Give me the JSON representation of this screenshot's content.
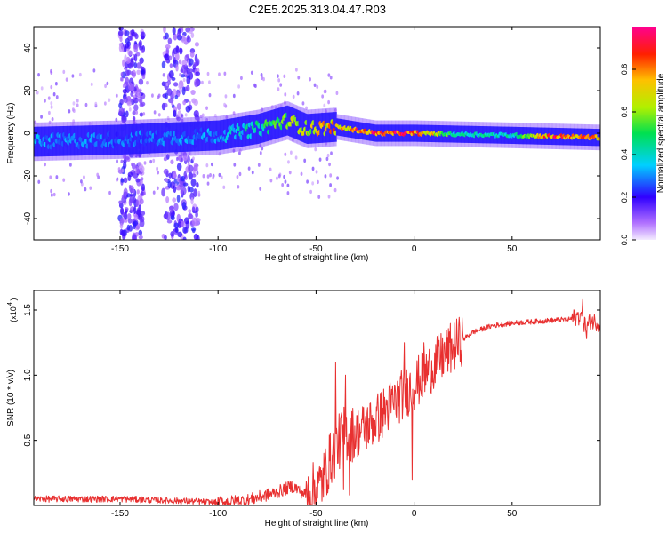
{
  "figure": {
    "title": "C2E5.2025.313.04.47.R03"
  },
  "colors": {
    "snr_line": "#e83030",
    "axis": "#000000"
  },
  "chart_data": [
    {
      "type": "heatmap",
      "title": "C2E5.2025.313.04.47.R03",
      "xlabel": "Height of straight line (km)",
      "ylabel": "Frequency (Hz)",
      "xlim": [
        -194,
        95
      ],
      "ylim": [
        -50,
        50
      ],
      "x_ticks": [
        -150,
        -100,
        -50,
        0,
        50
      ],
      "y_ticks": [
        -40,
        -20,
        0,
        20,
        40
      ],
      "colorbar": {
        "label": "Normalized spectral amplitude",
        "range": [
          0.0,
          1.0
        ],
        "ticks": [
          "0.0",
          "0.2",
          "0.4",
          "0.6",
          "0.8"
        ],
        "colormap": "white-violet-blue-cyan-green-yellow-red-magenta"
      },
      "ridge_frequency": [
        {
          "x": -194,
          "f": -4
        },
        {
          "x": -150,
          "f": -3
        },
        {
          "x": -100,
          "f": -1
        },
        {
          "x": -80,
          "f": 2
        },
        {
          "x": -65,
          "f": 6
        },
        {
          "x": -55,
          "f": 2
        },
        {
          "x": -40,
          "f": 3
        },
        {
          "x": -20,
          "f": 0
        },
        {
          "x": 0,
          "f": 0
        },
        {
          "x": 50,
          "f": -1
        },
        {
          "x": 95,
          "f": -2
        }
      ],
      "ridge_amplitude": [
        {
          "x": -194,
          "a": 0.35
        },
        {
          "x": -150,
          "a": 0.3
        },
        {
          "x": -100,
          "a": 0.35
        },
        {
          "x": -80,
          "a": 0.5
        },
        {
          "x": -60,
          "a": 0.7
        },
        {
          "x": -40,
          "a": 0.85
        },
        {
          "x": -20,
          "a": 0.95
        },
        {
          "x": 0,
          "a": 1.0
        },
        {
          "x": 20,
          "a": 0.5
        },
        {
          "x": 50,
          "a": 0.45
        },
        {
          "x": 70,
          "a": 0.95
        },
        {
          "x": 95,
          "a": 0.85
        }
      ],
      "noise_bands_km": [
        [
          -150,
          -138
        ],
        [
          -128,
          -110
        ]
      ]
    },
    {
      "type": "line",
      "xlabel": "Height of straight line (km)",
      "ylabel": "SNR (10 * v/v)",
      "y_multiplier_label": "(x10",
      "y_multiplier_exp": "4",
      "y_multiplier_close": ")",
      "xlim": [
        -194,
        95
      ],
      "ylim": [
        0,
        1.65
      ],
      "x_ticks": [
        -150,
        -100,
        -50,
        0,
        50
      ],
      "y_ticks": [
        "0.5",
        "1.0",
        "1.5"
      ],
      "y_tick_values": [
        0.5,
        1.0,
        1.5
      ],
      "envelope_x": [
        -194,
        -150,
        -110,
        -100,
        -85,
        -70,
        -62,
        -55,
        -48,
        -42,
        -36,
        -30,
        -20,
        -10,
        0,
        10,
        20,
        30,
        40,
        50,
        60,
        70,
        80,
        85,
        88,
        90,
        95
      ],
      "envelope_y": [
        0.05,
        0.05,
        0.03,
        0.02,
        0.04,
        0.1,
        0.15,
        0.08,
        0.15,
        0.38,
        0.55,
        0.55,
        0.65,
        0.8,
        0.92,
        1.08,
        1.22,
        1.33,
        1.38,
        1.4,
        1.41,
        1.42,
        1.43,
        1.46,
        1.36,
        1.42,
        1.4
      ],
      "spikes": [
        {
          "x": -40,
          "y": 1.1
        },
        {
          "x": -35,
          "y": 1.0
        },
        {
          "x": -36,
          "y": 0.12
        },
        {
          "x": -33,
          "y": 0.08
        },
        {
          "x": -5,
          "y": 1.25
        },
        {
          "x": -1,
          "y": 0.2
        },
        {
          "x": 5,
          "y": 1.25
        },
        {
          "x": 86,
          "y": 1.58
        },
        {
          "x": 88,
          "y": 1.28
        }
      ]
    }
  ]
}
